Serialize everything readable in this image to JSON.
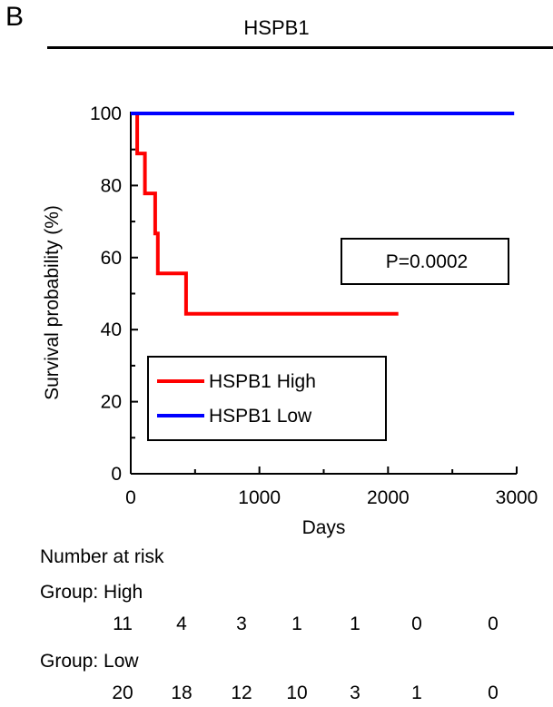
{
  "panel_letter": "B",
  "panel_title": "HSPB1",
  "chart_data": {
    "type": "line",
    "title": "HSPB1",
    "xlabel": "Days",
    "ylabel": "Survival probability (%)",
    "xlim": [
      0,
      3000
    ],
    "ylim": [
      0,
      100
    ],
    "x_ticks": [
      0,
      1000,
      2000,
      3000
    ],
    "x_tick_labels": [
      "0",
      "1000",
      "2000",
      "3000"
    ],
    "x_minor_ticks": [
      500,
      1500,
      2500
    ],
    "y_ticks": [
      0,
      20,
      40,
      60,
      80,
      100
    ],
    "y_tick_labels": [
      "0",
      "20",
      "40",
      "60",
      "80",
      "100"
    ],
    "grid": false,
    "legend_position": "bottom-left",
    "step": true,
    "series": [
      {
        "name": "HSPB1 High",
        "color": "#ff0000",
        "points": [
          [
            0,
            100
          ],
          [
            50,
            100
          ],
          [
            50,
            88.9
          ],
          [
            110,
            88.9
          ],
          [
            110,
            77.8
          ],
          [
            190,
            77.8
          ],
          [
            190,
            66.7
          ],
          [
            210,
            66.7
          ],
          [
            210,
            55.6
          ],
          [
            430,
            55.6
          ],
          [
            430,
            44.4
          ],
          [
            2080,
            44.4
          ]
        ]
      },
      {
        "name": "HSPB1 Low",
        "color": "#0000ff",
        "points": [
          [
            0,
            100
          ],
          [
            2980,
            100
          ]
        ]
      }
    ],
    "annotation": "P=0.0002"
  },
  "risk_table": {
    "heading": "Number at risk",
    "groups": [
      {
        "label": "Group: High",
        "values": [
          "11",
          "4",
          "3",
          "1",
          "1",
          "0",
          "0"
        ]
      },
      {
        "label": "Group: Low",
        "values": [
          "20",
          "18",
          "12",
          "10",
          "3",
          "1",
          "0"
        ]
      }
    ]
  }
}
